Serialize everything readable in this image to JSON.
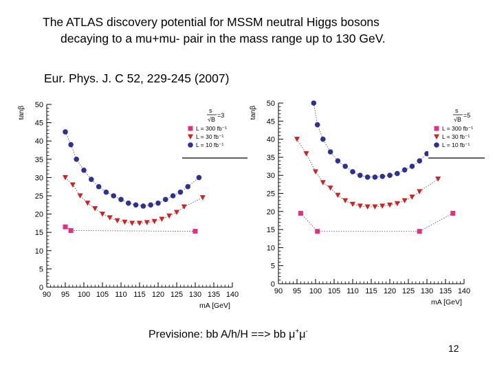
{
  "slide": {
    "title_line1": "The ATLAS discovery potential for MSSM neutral Higgs bosons",
    "title_line2": "decaying to a mu+mu- pair in the mass range up to 130 GeV.",
    "reference": "Eur. Phys. J. C 52, 229-245 (2007)",
    "caption_main": "Previsione: bb A/h/H ==> bb ",
    "caption_mu1": "μ",
    "caption_plus": "+",
    "caption_mu2": "μ",
    "caption_minus": "-",
    "page_number": "12"
  },
  "colors": {
    "magenta": "#e0307f",
    "red": "#cc2424",
    "navy": "#2f318f"
  },
  "chart_data": [
    {
      "type": "scatter",
      "panel": "left",
      "title": "",
      "xlabel": "m_A [GeV]",
      "ylabel": "tanβ",
      "xlim": [
        90,
        140
      ],
      "ylim": [
        0,
        50
      ],
      "xticks": [
        "90",
        "95",
        "100",
        "105",
        "110",
        "115",
        "120",
        "125",
        "130",
        "135",
        "140"
      ],
      "yticks": [
        "0",
        "5",
        "10",
        "15",
        "20",
        "25",
        "30",
        "35",
        "40",
        "45",
        "50"
      ],
      "significance": "3",
      "legend_position": "top-right",
      "series": [
        {
          "name": "L = 300 fb⁻¹",
          "marker": "square",
          "color": "#e0307f",
          "x": [
            95,
            96.5,
            130
          ],
          "y": [
            16.5,
            15.5,
            15.3
          ]
        },
        {
          "name": "L = 30 fb⁻¹",
          "marker": "triangle-down",
          "color": "#cc2424",
          "x": [
            95,
            97,
            99,
            101,
            103,
            105,
            107,
            109,
            111,
            113,
            115,
            117,
            119,
            121,
            123,
            125,
            127,
            132
          ],
          "y": [
            30,
            28,
            25,
            23,
            21.5,
            20,
            19,
            18.2,
            17.8,
            17.5,
            17.5,
            17.7,
            18,
            18.6,
            19.5,
            20.5,
            22,
            24.5
          ]
        },
        {
          "name": "L = 10 fb⁻¹",
          "marker": "circle",
          "color": "#2f318f",
          "x": [
            95,
            96.5,
            98,
            100,
            102,
            104,
            106,
            108,
            110,
            112,
            114,
            116,
            118,
            120,
            122,
            124,
            126,
            128,
            131
          ],
          "y": [
            42.5,
            39,
            35,
            32,
            29.5,
            27.5,
            26,
            25,
            24,
            23,
            22.5,
            22.2,
            22.5,
            23,
            24,
            25,
            26,
            27.5,
            30
          ]
        }
      ]
    },
    {
      "type": "scatter",
      "panel": "right",
      "title": "",
      "xlabel": "m_A [GeV]",
      "ylabel": "tanβ",
      "xlim": [
        90,
        140
      ],
      "ylim": [
        0,
        50
      ],
      "xticks": [
        "90",
        "95",
        "100",
        "105",
        "110",
        "115",
        "120",
        "125",
        "130",
        "135",
        "140"
      ],
      "yticks": [
        "0",
        "5",
        "10",
        "15",
        "20",
        "25",
        "30",
        "35",
        "40",
        "45",
        "50"
      ],
      "significance": "5",
      "legend_position": "top-right",
      "series": [
        {
          "name": "L = 300 fb⁻¹",
          "marker": "square",
          "color": "#e0307f",
          "x": [
            96,
            100.5,
            128,
            137
          ],
          "y": [
            19.5,
            14.5,
            14.5,
            19.5
          ]
        },
        {
          "name": "L = 30 fb⁻¹",
          "marker": "triangle-down",
          "color": "#cc2424",
          "x": [
            95,
            97.5,
            100,
            102,
            104,
            106,
            108,
            110,
            112,
            114,
            116,
            118,
            120,
            122,
            124,
            126,
            128,
            133
          ],
          "y": [
            40,
            36,
            31,
            28,
            26.5,
            24.5,
            23,
            22,
            21.5,
            21.3,
            21.3,
            21.5,
            21.8,
            22.2,
            23,
            24,
            25.5,
            29
          ]
        },
        {
          "name": "L = 10 fb⁻¹",
          "marker": "circle",
          "color": "#2f318f",
          "x": [
            99.5,
            100.5,
            102,
            104,
            106,
            108,
            110,
            112,
            114,
            116,
            118,
            120,
            122,
            124,
            126,
            128,
            130
          ],
          "y": [
            50,
            44,
            40,
            36.5,
            34,
            32.5,
            31,
            30,
            29.5,
            29.5,
            29.7,
            30,
            30.5,
            31.5,
            32.5,
            34,
            36
          ]
        }
      ]
    }
  ]
}
